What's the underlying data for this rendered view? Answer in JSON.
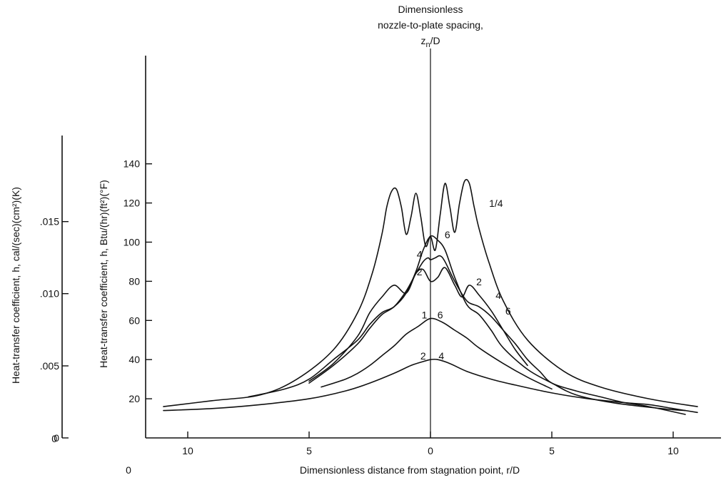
{
  "chart_data": {
    "type": "line",
    "title_lines": [
      "Dimensionless",
      "nozzle-to-plate spacing,"
    ],
    "title_symbol": "z",
    "title_symbol_sub": "n",
    "title_symbol_suffix": "/D",
    "xlabel": "Dimensionless distance from stagnation point,  r/D",
    "ylabel_main": "Heat-transfer coefficient,  h,  Btu/(hr)(ft²)(°F)",
    "ylabel_secondary": "Heat-transfer coefficient,  h,  cal/(sec)(cm²)(K)",
    "x_tick_labels": [
      "10",
      "5",
      "0",
      "5",
      "10"
    ],
    "x_origin_label": "0",
    "x_ticks": [
      -10,
      -5,
      0,
      5,
      10
    ],
    "xlim": [
      -11.5,
      11.5
    ],
    "y_tick_labels": [
      "20",
      "40",
      "60",
      "80",
      "100",
      "120",
      "140"
    ],
    "y_ticks": [
      20,
      40,
      60,
      80,
      100,
      120,
      140
    ],
    "y_origin_label": "0",
    "ylim": [
      0,
      140
    ],
    "secondary_axis": {
      "tick_labels": [
        ".015",
        ".010",
        ".005",
        "0"
      ],
      "values": [
        0.015,
        0.01,
        0.005,
        0
      ],
      "btu_equivalent": [
        110.5,
        73.7,
        36.8,
        0
      ]
    },
    "grid": false,
    "series": [
      {
        "name": "1/4",
        "x": [
          -11.0,
          -9.0,
          -7.0,
          -5.5,
          -4.0,
          -3.0,
          -2.4,
          -2.0,
          -1.8,
          -1.6,
          -1.4,
          -1.2,
          -1.0,
          -0.8,
          -0.6,
          -0.4,
          -0.2,
          0.0,
          0.2,
          0.4,
          0.6,
          0.8,
          1.0,
          1.2,
          1.4,
          1.6,
          1.8,
          2.0,
          2.4,
          3.0,
          4.0,
          5.5,
          7.0,
          9.0,
          11.0
        ],
        "y": [
          16,
          19,
          22,
          30,
          45,
          64,
          84,
          104,
          118,
          126,
          127,
          118,
          104,
          113,
          125,
          113,
          98,
          103,
          96,
          114,
          130,
          118,
          105,
          120,
          131,
          130,
          118,
          107,
          90,
          70,
          50,
          34,
          26,
          20,
          16
        ]
      },
      {
        "name": "6",
        "x": [
          -7.5,
          -6.0,
          -5.0,
          -4.0,
          -3.0,
          -2.5,
          -2.0,
          -1.5,
          -1.0,
          -0.6,
          -0.3,
          0.0,
          0.3,
          0.6,
          1.0,
          1.5,
          2.0,
          2.5,
          3.0,
          4.0,
          5.0,
          6.0,
          7.5,
          9.5,
          10.5
        ],
        "y": [
          21,
          25,
          30,
          40,
          50,
          58,
          64,
          67,
          74,
          85,
          96,
          103,
          101,
          96,
          82,
          68,
          63,
          55,
          46,
          35,
          28,
          22,
          18,
          15,
          14
        ]
      },
      {
        "name": "4",
        "x": [
          -5.0,
          -4.0,
          -3.0,
          -2.5,
          -2.0,
          -1.5,
          -1.0,
          -0.6,
          -0.3,
          -0.1,
          0.0,
          0.2,
          0.4,
          0.6,
          1.0,
          1.5,
          2.0,
          2.5,
          3.0,
          3.5,
          4.0,
          4.5,
          5.0,
          6.0,
          7.0,
          8.0,
          9.0,
          10.5
        ],
        "y": [
          28,
          37,
          48,
          56,
          63,
          67,
          75,
          84,
          90,
          92,
          91,
          92,
          93,
          90,
          80,
          70,
          67,
          62,
          55,
          48,
          40,
          34,
          28,
          24,
          21,
          18,
          16,
          12
        ]
      },
      {
        "name": "2",
        "x": [
          -5.0,
          -4.0,
          -3.0,
          -2.5,
          -2.0,
          -1.5,
          -1.0,
          -0.6,
          -0.3,
          0.0,
          0.3,
          0.6,
          1.0,
          1.3,
          1.6,
          2.0,
          2.5,
          3.0,
          3.5,
          4.0
        ],
        "y": [
          29,
          38,
          52,
          64,
          72,
          78,
          74,
          84,
          86,
          80,
          82,
          87,
          78,
          72,
          78,
          73,
          65,
          55,
          45,
          37
        ]
      },
      {
        "name": "1",
        "x": [
          -4.5,
          -3.5,
          -3.0,
          -2.5,
          -2.0,
          -1.5,
          -1.0,
          -0.5,
          0.0,
          0.5,
          1.0,
          1.5,
          2.0,
          3.0,
          4.0,
          5.0
        ],
        "y": [
          26,
          30,
          33,
          37,
          42,
          47,
          53,
          57,
          61,
          59,
          55,
          51,
          46,
          38,
          31,
          25
        ]
      },
      {
        "name": "1/4 (outer)",
        "x": [
          -11.0,
          -9.0,
          -7.0,
          -5.0,
          -3.5,
          -2.5,
          -1.5,
          -0.8,
          -0.3,
          0.0,
          0.3,
          0.8,
          1.5,
          2.5,
          3.5,
          5.0,
          6.5,
          8.0,
          9.0,
          10.0,
          11.0
        ],
        "y": [
          14,
          15,
          17,
          20,
          24,
          28,
          33,
          37,
          39,
          40,
          40,
          38,
          34,
          30,
          27,
          23,
          20,
          18,
          17,
          15,
          13
        ]
      }
    ],
    "curve_labels": [
      {
        "text": "1/4",
        "x": 2.7,
        "y": 118
      },
      {
        "text": "6",
        "x": 0.7,
        "y": 102
      },
      {
        "text": "4",
        "x": -0.45,
        "y": 92
      },
      {
        "text": "2",
        "x": -0.45,
        "y": 83
      },
      {
        "text": "2",
        "x": 2.0,
        "y": 78
      },
      {
        "text": "4",
        "x": 2.8,
        "y": 71
      },
      {
        "text": "6",
        "x": 3.2,
        "y": 63
      },
      {
        "text": "1",
        "x": -0.25,
        "y": 61
      },
      {
        "text": "6",
        "x": 0.4,
        "y": 61
      },
      {
        "text": "2",
        "x": -0.3,
        "y": 40
      },
      {
        "text": "4",
        "x": 0.45,
        "y": 40
      }
    ]
  }
}
